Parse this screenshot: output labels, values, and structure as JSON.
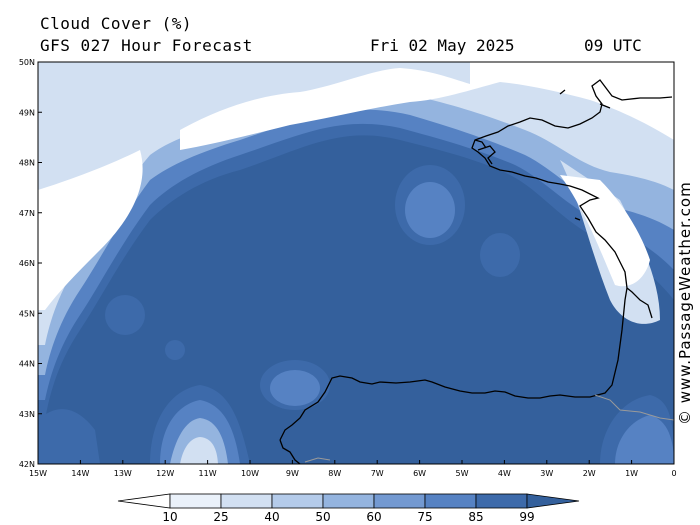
{
  "header": {
    "title": "Cloud Cover (%)",
    "subtitle": "GFS 027 Hour Forecast",
    "date": "Fri 02 May 2025",
    "time": "09 UTC"
  },
  "credit": "© www.PassageWeather.com",
  "axes": {
    "lat_labels": [
      "50N",
      "49N",
      "48N",
      "47N",
      "46N",
      "45N",
      "44N",
      "43N",
      "42N"
    ],
    "lon_labels": [
      "15W",
      "14W",
      "13W",
      "12W",
      "11W",
      "10W",
      "9W",
      "8W",
      "7W",
      "6W",
      "5W",
      "4W",
      "3W",
      "2W",
      "1W",
      "0"
    ]
  },
  "legend": {
    "levels": [
      "10",
      "25",
      "40",
      "50",
      "60",
      "75",
      "85",
      "99"
    ],
    "colors": [
      "#ffffff",
      "#eaf1fa",
      "#d2e0f2",
      "#b4cbea",
      "#94b4df",
      "#7399d1",
      "#5682c3",
      "#3d6aaa",
      "#34609c"
    ]
  },
  "colors": {
    "base": "#34609c",
    "coast": "#000000"
  }
}
